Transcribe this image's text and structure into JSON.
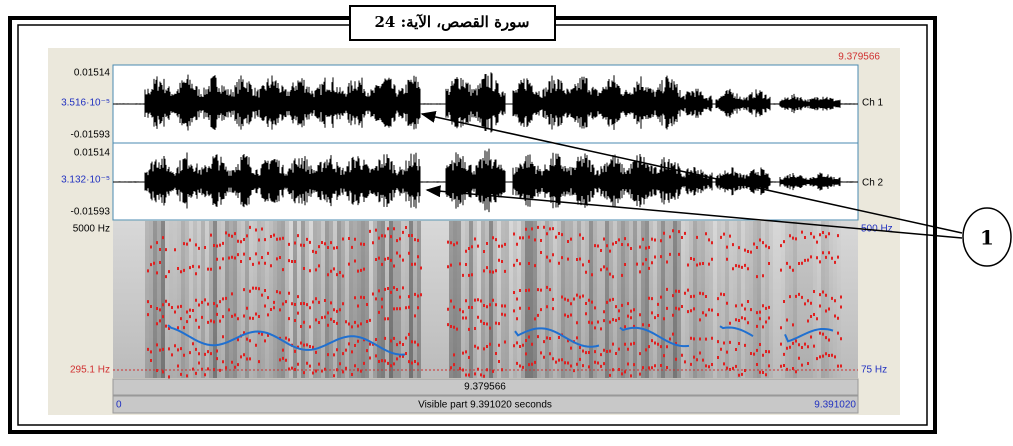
{
  "caption": "سورة القصص، الآية: 24",
  "time_cursor_top": "9.379566",
  "channel1": {
    "max": "0.01514",
    "mid": "3.516·10⁻⁵",
    "min": "-0.01593",
    "label": "Ch 1"
  },
  "channel2": {
    "max": "0.01514",
    "mid": "3.132·10⁻⁵",
    "min": "-0.01593",
    "label": "Ch 2"
  },
  "spectrogram": {
    "freq_max": "5000 Hz",
    "freq_min": "295.1 Hz",
    "pitch_max": "500 Hz",
    "pitch_min": "75 Hz"
  },
  "time_bar": {
    "cursor": "9.379566",
    "start": "0",
    "end": "9.391020",
    "visible": "Visible part 9.391020 seconds"
  },
  "callout": "1"
}
